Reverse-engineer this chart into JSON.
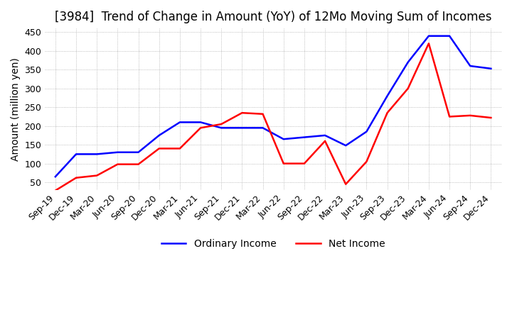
{
  "title": "[3984]  Trend of Change in Amount (YoY) of 12Mo Moving Sum of Incomes",
  "ylabel": "Amount (million yen)",
  "ylim": [
    30,
    460
  ],
  "yticks": [
    50,
    100,
    150,
    200,
    250,
    300,
    350,
    400,
    450
  ],
  "x_labels": [
    "Sep-19",
    "Dec-19",
    "Mar-20",
    "Jun-20",
    "Sep-20",
    "Dec-20",
    "Mar-21",
    "Jun-21",
    "Sep-21",
    "Dec-21",
    "Mar-22",
    "Jun-22",
    "Sep-22",
    "Dec-22",
    "Mar-23",
    "Jun-23",
    "Sep-23",
    "Dec-23",
    "Mar-24",
    "Jun-24",
    "Sep-24",
    "Dec-24"
  ],
  "ordinary_income": [
    65,
    125,
    125,
    130,
    130,
    175,
    210,
    210,
    195,
    195,
    195,
    165,
    170,
    175,
    148,
    185,
    280,
    370,
    440,
    440,
    360,
    353
  ],
  "net_income": [
    28,
    62,
    68,
    98,
    98,
    140,
    140,
    195,
    205,
    235,
    232,
    100,
    100,
    160,
    45,
    105,
    235,
    300,
    420,
    225,
    228,
    222
  ],
  "ordinary_color": "#0000ff",
  "net_color": "#ff0000",
  "grid_color": "#aaaaaa",
  "background_color": "#ffffff",
  "title_fontsize": 12,
  "label_fontsize": 10,
  "tick_fontsize": 9
}
